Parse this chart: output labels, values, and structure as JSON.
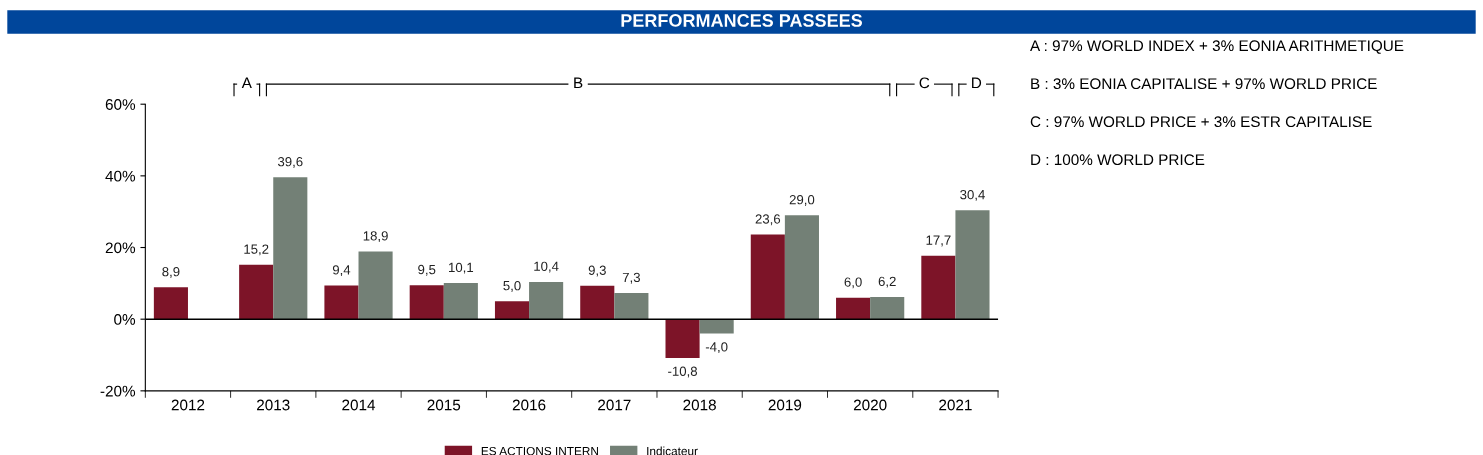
{
  "chart_data": {
    "type": "bar",
    "title": "PERFORMANCES PASSEES",
    "categories": [
      "2012",
      "2013",
      "2014",
      "2015",
      "2016",
      "2017",
      "2018",
      "2019",
      "2020",
      "2021"
    ],
    "series": [
      {
        "name": "ES ACTIONS INTERN",
        "color": "#7d1428",
        "values": [
          8.9,
          15.2,
          9.4,
          9.5,
          5.0,
          9.3,
          -10.8,
          23.6,
          6.0,
          17.7
        ],
        "value_labels": [
          "8,9",
          "15,2",
          "9,4",
          "9,5",
          "5,0",
          "9,3",
          "-10,8",
          "23,6",
          "6,0",
          "17,7"
        ]
      },
      {
        "name": "Indicateur",
        "color": "#738076",
        "values": [
          null,
          39.6,
          18.9,
          10.1,
          10.4,
          7.3,
          -4.0,
          29.0,
          6.2,
          30.4
        ],
        "value_labels": [
          null,
          "39,6",
          "18,9",
          "10,1",
          "10,4",
          "7,3",
          "-4,0",
          "29,0",
          "6,2",
          "30,4"
        ]
      }
    ],
    "ylim": [
      -20,
      60
    ],
    "yticks": [
      {
        "value": -20,
        "label": "-20%"
      },
      {
        "value": 0,
        "label": "0%"
      },
      {
        "value": 20,
        "label": "20%"
      },
      {
        "value": 40,
        "label": "40%"
      },
      {
        "value": 60,
        "label": "60%"
      }
    ],
    "grid": false,
    "legend": "bottom",
    "ref_lines": [
      {
        "axis": "y",
        "value": 0,
        "color": "#000000"
      }
    ],
    "annotations": [
      "A",
      "B",
      "C",
      "D",
      "A : 97% WORLD INDEX + 3% EONIA ARITHMETIQUE",
      "B : 3% EONIA CAPITALISE + 97% WORLD PRICE",
      "C : 97% WORLD PRICE + 3% ESTR CAPITALISE",
      "D : 100% WORLD PRICE"
    ]
  }
}
